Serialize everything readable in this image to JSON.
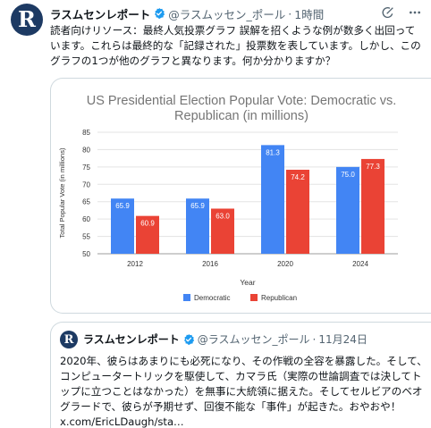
{
  "tweet": {
    "author_name": "ラスムセンレポート",
    "handle": "@ラスムッセン_ポール",
    "separator": "·",
    "time": "1時間",
    "text": "読者向けリソース：最終人気投票グラフ 誤解を招くような例が数多く出回っています。これらは最終的な「記録された」投票数を表しています。しかし、このグラフの1つが他のグラフと異なります。何か分かりますか？"
  },
  "icons": {
    "avatar": "ラスムセンレポート-logo",
    "verified": "verified-badge-icon",
    "grok": "grok-icon",
    "more": "more-options-icon"
  },
  "colors": {
    "democratic": "#4285f4",
    "republican": "#ea4335",
    "verified": "#1d9bf0",
    "avatar_bg": "#1d3a63"
  },
  "chart_data": {
    "type": "bar",
    "title": "US Presidential Election Popular Vote: Democratic vs. Republican (in millions)",
    "xlabel": "Year",
    "ylabel": "Total Popular Vote (in millions)",
    "categories": [
      "2012",
      "2016",
      "2020",
      "2024"
    ],
    "series": [
      {
        "name": "Democratic",
        "values": [
          65.9,
          65.9,
          81.3,
          75.0
        ],
        "labels": [
          "65.9",
          "65.9",
          "81.3",
          "75.0"
        ]
      },
      {
        "name": "Republican",
        "values": [
          60.9,
          63.0,
          74.2,
          77.3
        ],
        "labels": [
          "60.9",
          "63.0",
          "74.2",
          "77.3"
        ]
      }
    ],
    "ylim": [
      50,
      85
    ],
    "yticks": [
      "50",
      "55",
      "60",
      "65",
      "70",
      "75",
      "80",
      "85"
    ],
    "grid": true,
    "legend": "bottom"
  },
  "quote": {
    "author_name": "ラスムセンレポート",
    "handle": "@ラスムッセン_ポール",
    "separator": "·",
    "time": "11月24日",
    "text": "2020年、彼らはあまりにも必死になり、その作戦の全容を暴露した。そして、コンピュータートリックを駆使して、カマラ氏（実際の世論調査では決してトップに立つことはなかった）を無事に大統領に据えた。そしてセルビアのベオグラードで、彼らが予期せず、回復不能な「事件」が起きた。おやおや！ x.com/EricLDaugh/sta…"
  }
}
